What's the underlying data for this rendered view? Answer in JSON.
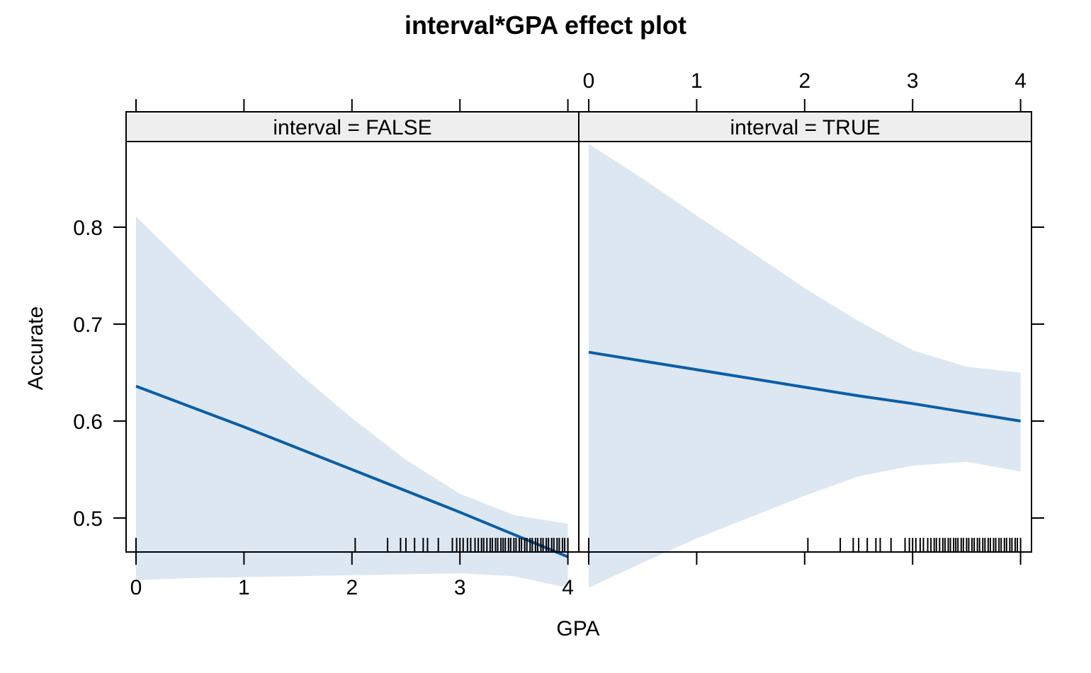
{
  "chart_data": {
    "type": "line",
    "title": "interval*GPA effect plot",
    "xlabel": "GPA",
    "ylabel": "Accurate",
    "xlim": [
      0,
      4
    ],
    "ylim": [
      0.41,
      0.9
    ],
    "x_ticks": [
      "0",
      "1",
      "2",
      "3",
      "4"
    ],
    "y_ticks": [
      "0.8",
      "0.7",
      "0.6",
      "0.5"
    ],
    "colors": {
      "line": "#0b5ea5",
      "band": "#dce7f2",
      "strip": "#eeeeee",
      "axis": "#000000"
    },
    "panels": [
      {
        "strip": "interval = FALSE",
        "x": [
          0,
          0.5,
          1,
          1.5,
          2,
          2.5,
          3,
          3.5,
          4
        ],
        "fit": [
          0.636,
          0.615,
          0.594,
          0.572,
          0.55,
          0.528,
          0.506,
          0.483,
          0.46
        ],
        "upper": [
          0.811,
          0.756,
          0.702,
          0.65,
          0.603,
          0.56,
          0.525,
          0.503,
          0.494
        ],
        "lower": [
          0.436,
          0.438,
          0.439,
          0.44,
          0.441,
          0.442,
          0.443,
          0.44,
          0.428
        ],
        "rug": [
          0.0,
          2.03,
          2.33,
          2.45,
          2.5,
          2.58,
          2.66,
          2.7,
          2.8,
          2.93,
          2.97,
          3.0,
          3.03,
          3.07,
          3.1,
          3.14,
          3.17,
          3.2,
          3.22,
          3.25,
          3.28,
          3.3,
          3.33,
          3.35,
          3.38,
          3.4,
          3.42,
          3.45,
          3.47,
          3.5,
          3.52,
          3.55,
          3.57,
          3.6,
          3.62,
          3.65,
          3.67,
          3.7,
          3.72,
          3.75,
          3.77,
          3.8,
          3.82,
          3.85,
          3.87,
          3.9,
          3.92,
          3.95,
          3.97,
          4.0
        ]
      },
      {
        "strip": "interval = TRUE",
        "x": [
          0,
          0.5,
          1,
          1.5,
          2,
          2.5,
          3,
          3.5,
          4
        ],
        "fit": [
          0.671,
          0.662,
          0.653,
          0.644,
          0.635,
          0.626,
          0.618,
          0.609,
          0.6
        ],
        "upper": [
          0.886,
          0.85,
          0.812,
          0.775,
          0.737,
          0.703,
          0.673,
          0.656,
          0.65
        ],
        "lower": [
          0.428,
          0.454,
          0.479,
          0.501,
          0.523,
          0.543,
          0.554,
          0.558,
          0.548
        ],
        "rug": [
          0.0,
          2.03,
          2.33,
          2.45,
          2.5,
          2.58,
          2.66,
          2.7,
          2.8,
          2.93,
          2.97,
          3.0,
          3.03,
          3.07,
          3.1,
          3.14,
          3.17,
          3.2,
          3.22,
          3.25,
          3.28,
          3.3,
          3.33,
          3.35,
          3.38,
          3.4,
          3.42,
          3.45,
          3.47,
          3.5,
          3.52,
          3.55,
          3.57,
          3.6,
          3.62,
          3.65,
          3.67,
          3.7,
          3.72,
          3.75,
          3.77,
          3.8,
          3.82,
          3.85,
          3.87,
          3.9,
          3.92,
          3.95,
          3.97,
          4.0
        ]
      }
    ]
  }
}
